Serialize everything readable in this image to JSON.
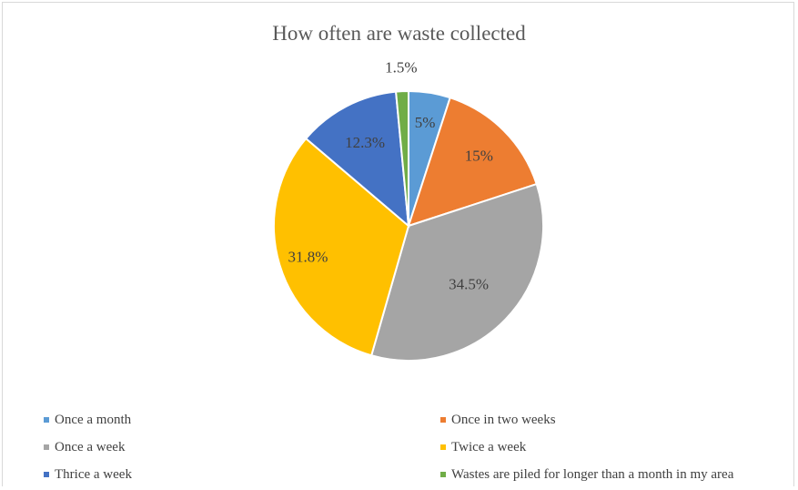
{
  "chart_data": {
    "type": "pie",
    "title": "How often are waste collected",
    "slices": [
      {
        "label": "Once a month",
        "value": 5,
        "value_label": "5%",
        "color": "#5B9BD5"
      },
      {
        "label": "Once in two weeks",
        "value": 15,
        "value_label": "15%",
        "color": "#ED7D31"
      },
      {
        "label": "Once a week",
        "value": 34.5,
        "value_label": "34.5%",
        "color": "#A5A5A5"
      },
      {
        "label": "Twice a week",
        "value": 31.8,
        "value_label": "31.8%",
        "color": "#FFC000"
      },
      {
        "label": "Thrice a week",
        "value": 12.3,
        "value_label": "12.3%",
        "color": "#4472C4"
      },
      {
        "label": "Wastes are piled for longer than a month in my area",
        "value": 1.5,
        "value_label": "1.5%",
        "color": "#70AD47"
      }
    ],
    "legend_position": "bottom"
  }
}
